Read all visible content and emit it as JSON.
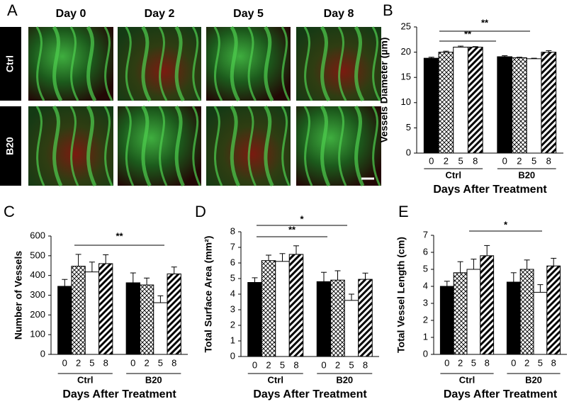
{
  "figure": {
    "panel": "A",
    "columns": [
      "Day 0",
      "Day 2",
      "Day 5",
      "Day 8"
    ],
    "rows": [
      "Ctrl",
      "B20"
    ]
  },
  "chart_data": [
    {
      "type": "bar",
      "panel": "B",
      "ylabel": "Vessels Diameter (µm)",
      "xlabel": "Days After Treatment",
      "categories": [
        "Ctrl",
        "B20"
      ],
      "series": [
        {
          "name": "0",
          "pattern": "solid",
          "color": "#000000",
          "values": [
            18.8,
            19.1
          ],
          "errors": [
            0.2,
            0.2
          ]
        },
        {
          "name": "2",
          "pattern": "crosshatch",
          "color": "#000000",
          "values": [
            20.0,
            18.9
          ],
          "errors": [
            0.2,
            0.1
          ]
        },
        {
          "name": "5",
          "pattern": "none",
          "color": "#000000",
          "values": [
            21.0,
            18.7
          ],
          "errors": [
            0.2,
            0.1
          ]
        },
        {
          "name": "8",
          "pattern": "stripes",
          "color": "#000000",
          "values": [
            21.0,
            20.0
          ],
          "errors": [
            0.1,
            0.3
          ]
        }
      ],
      "ylim": [
        0,
        25
      ],
      "yticks": [
        0,
        5,
        10,
        15,
        20,
        25
      ],
      "annotations": [
        "**",
        "**"
      ]
    },
    {
      "type": "bar",
      "panel": "C",
      "ylabel": "Number of Vessels",
      "xlabel": "Days After Treatment",
      "categories": [
        "Ctrl",
        "B20"
      ],
      "series": [
        {
          "name": "0",
          "pattern": "solid",
          "color": "#000000",
          "values": [
            345,
            363
          ],
          "errors": [
            35,
            50
          ]
        },
        {
          "name": "2",
          "pattern": "crosshatch",
          "color": "#000000",
          "values": [
            447,
            352
          ],
          "errors": [
            60,
            35
          ]
        },
        {
          "name": "5",
          "pattern": "none",
          "color": "#000000",
          "values": [
            418,
            262
          ],
          "errors": [
            50,
            35
          ]
        },
        {
          "name": "8",
          "pattern": "stripes",
          "color": "#000000",
          "values": [
            460,
            408
          ],
          "errors": [
            45,
            35
          ]
        }
      ],
      "ylim": [
        0,
        600
      ],
      "yticks": [
        0,
        100,
        200,
        300,
        400,
        500,
        600
      ],
      "annotations": [
        "**"
      ]
    },
    {
      "type": "bar",
      "panel": "D",
      "ylabel": "Total Surface Area (mm²)",
      "xlabel": "Days After Treatment",
      "categories": [
        "Ctrl",
        "B20"
      ],
      "series": [
        {
          "name": "0",
          "pattern": "solid",
          "color": "#000000",
          "values": [
            4.75,
            4.8
          ],
          "errors": [
            0.3,
            0.6
          ]
        },
        {
          "name": "2",
          "pattern": "crosshatch",
          "color": "#000000",
          "values": [
            6.15,
            4.9
          ],
          "errors": [
            0.35,
            0.6
          ]
        },
        {
          "name": "5",
          "pattern": "none",
          "color": "#000000",
          "values": [
            6.1,
            3.6
          ],
          "errors": [
            0.5,
            0.4
          ]
        },
        {
          "name": "8",
          "pattern": "stripes",
          "color": "#000000",
          "values": [
            6.55,
            4.95
          ],
          "errors": [
            0.55,
            0.4
          ]
        }
      ],
      "ylim": [
        0,
        8
      ],
      "yticks": [
        0,
        1,
        2,
        3,
        4,
        5,
        6,
        7,
        8
      ],
      "annotations": [
        "*",
        "**"
      ]
    },
    {
      "type": "bar",
      "panel": "E",
      "ylabel": "Total Vessel Length (cm)",
      "xlabel": "Days After Treatment",
      "categories": [
        "Ctrl",
        "B20"
      ],
      "series": [
        {
          "name": "0",
          "pattern": "solid",
          "color": "#000000",
          "values": [
            4.0,
            4.25
          ],
          "errors": [
            0.3,
            0.55
          ]
        },
        {
          "name": "2",
          "pattern": "crosshatch",
          "color": "#000000",
          "values": [
            4.8,
            5.0
          ],
          "errors": [
            0.65,
            0.55
          ]
        },
        {
          "name": "5",
          "pattern": "none",
          "color": "#000000",
          "values": [
            5.0,
            3.65
          ],
          "errors": [
            0.6,
            0.45
          ]
        },
        {
          "name": "8",
          "pattern": "stripes",
          "color": "#000000",
          "values": [
            5.8,
            5.2
          ],
          "errors": [
            0.6,
            0.45
          ]
        }
      ],
      "ylim": [
        0,
        7
      ],
      "yticks": [
        0,
        1,
        2,
        3,
        4,
        5,
        6,
        7
      ],
      "annotations": [
        "*"
      ]
    }
  ]
}
